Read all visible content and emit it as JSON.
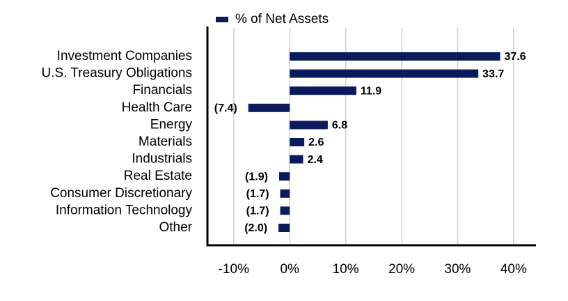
{
  "chart_data": {
    "type": "bar",
    "orientation": "horizontal",
    "categories": [
      "Investment Companies",
      "U.S. Treasury Obligations",
      "Financials",
      "Health Care",
      "Energy",
      "Materials",
      "Industrials",
      "Real Estate",
      "Consumer Discretionary",
      "Information Technology",
      "Other"
    ],
    "series": [
      {
        "name": "% of Net Assets",
        "color": "#0b1a5c",
        "values": [
          37.6,
          33.7,
          11.9,
          -7.4,
          6.8,
          2.6,
          2.4,
          -1.9,
          -1.7,
          -1.7,
          -2.0
        ],
        "value_labels": [
          "37.6",
          "33.7",
          "11.9",
          "(7.4)",
          "6.8",
          "2.6",
          "2.4",
          "(1.9)",
          "(1.7)",
          "(1.7)",
          "(2.0)"
        ]
      }
    ],
    "xlim": [
      -14.7,
      44
    ],
    "xticks": [
      {
        "value": -10,
        "label": "-10%"
      },
      {
        "value": 0,
        "label": "0%"
      },
      {
        "value": 10,
        "label": "10%"
      },
      {
        "value": 20,
        "label": "20%"
      },
      {
        "value": 30,
        "label": "30%"
      },
      {
        "value": 40,
        "label": "40%"
      }
    ],
    "grid": true,
    "legend": "top"
  }
}
